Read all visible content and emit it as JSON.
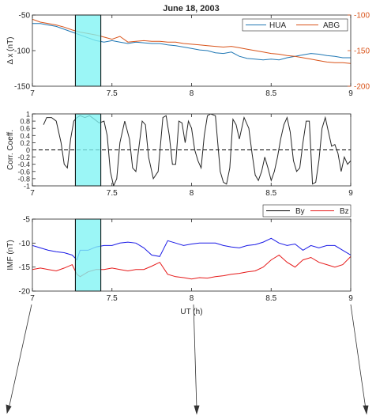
{
  "figure": {
    "title": "June 18, 2003"
  },
  "colors": {
    "hua": "#1f77b4",
    "abg": "#d95319",
    "corr": "#262626",
    "by": "#1a1ae6",
    "bz": "#e61a1a",
    "highlight": "#7ff4f4",
    "axis": "#262626"
  },
  "chart_data": [
    {
      "type": "line",
      "panel": "top",
      "title": "June 18, 2003",
      "xlabel": "",
      "ylabel": "Δ x (nT)",
      "y2label": "",
      "xlim": [
        7,
        9
      ],
      "ylim": [
        -150,
        -50
      ],
      "y2lim": [
        -200,
        -100
      ],
      "xticks": [
        7,
        7.5,
        8,
        8.5,
        9
      ],
      "xtick_labels": [
        "7",
        "7.5",
        "8",
        "8.5",
        "9"
      ],
      "yticks": [
        -150,
        -100,
        -50
      ],
      "ytick_labels": [
        "-150",
        "-100",
        "-50"
      ],
      "y2ticks": [
        -200,
        -150,
        -100
      ],
      "y2tick_labels": [
        "-200",
        "-150",
        "-100"
      ],
      "legend_position": "top-right",
      "highlight": {
        "x0": 7.27,
        "x1": 7.43
      },
      "series": [
        {
          "name": "HUA",
          "axis": "left",
          "x": [
            7.0,
            7.05,
            7.1,
            7.15,
            7.2,
            7.25,
            7.3,
            7.35,
            7.4,
            7.45,
            7.5,
            7.55,
            7.6,
            7.65,
            7.7,
            7.75,
            7.8,
            7.85,
            7.9,
            7.95,
            8.0,
            8.05,
            8.1,
            8.15,
            8.2,
            8.25,
            8.3,
            8.35,
            8.4,
            8.45,
            8.5,
            8.55,
            8.6,
            8.65,
            8.7,
            8.75,
            8.8,
            8.85,
            8.9,
            8.95,
            9.0
          ],
          "y": [
            -62,
            -62,
            -64,
            -66,
            -70,
            -74,
            -78,
            -82,
            -86,
            -88,
            -86,
            -88,
            -90,
            -88,
            -89,
            -90,
            -90,
            -92,
            -93,
            -95,
            -97,
            -99,
            -100,
            -103,
            -104,
            -102,
            -108,
            -111,
            -112,
            -113,
            -112,
            -113,
            -110,
            -108,
            -106,
            -104,
            -105,
            -107,
            -108,
            -110,
            -110
          ]
        },
        {
          "name": "ABG",
          "axis": "right",
          "x": [
            7.0,
            7.05,
            7.1,
            7.15,
            7.2,
            7.25,
            7.3,
            7.35,
            7.4,
            7.45,
            7.5,
            7.55,
            7.6,
            7.65,
            7.7,
            7.75,
            7.8,
            7.85,
            7.9,
            7.95,
            8.0,
            8.05,
            8.1,
            8.15,
            8.2,
            8.25,
            8.3,
            8.35,
            8.4,
            8.45,
            8.5,
            8.55,
            8.6,
            8.65,
            8.7,
            8.75,
            8.8,
            8.85,
            8.9,
            8.95,
            9.0
          ],
          "y": [
            -106,
            -110,
            -112,
            -114,
            -117,
            -121,
            -124,
            -126,
            -128,
            -131,
            -134,
            -130,
            -138,
            -137,
            -136,
            -137,
            -137,
            -138,
            -138,
            -140,
            -141,
            -142,
            -143,
            -144,
            -145,
            -144,
            -146,
            -148,
            -150,
            -152,
            -154,
            -155,
            -157,
            -158,
            -160,
            -162,
            -164,
            -166,
            -167,
            -167,
            -168
          ]
        }
      ]
    },
    {
      "type": "line",
      "panel": "middle",
      "xlabel": "",
      "ylabel": "Corr. Coeff.",
      "xlim": [
        7,
        9
      ],
      "ylim": [
        -1,
        1
      ],
      "xticks": [
        7,
        7.5,
        8,
        8.5,
        9
      ],
      "xtick_labels": [
        "7",
        "7.5",
        "8",
        "8.5",
        "9"
      ],
      "yticks": [
        -1,
        -0.8,
        -0.6,
        -0.4,
        -0.2,
        0,
        0.2,
        0.4,
        0.6,
        0.8,
        1
      ],
      "ytick_labels": [
        "-1",
        "-0.8",
        "-0.6",
        "-0.4",
        "-0.2",
        "0",
        "0.2",
        "0.4",
        "0.6",
        "0.8",
        "1"
      ],
      "zero_line": "dashed",
      "highlight": {
        "x0": 7.27,
        "x1": 7.43
      },
      "series": [
        {
          "name": "",
          "x": [
            7.07,
            7.09,
            7.12,
            7.15,
            7.18,
            7.2,
            7.22,
            7.24,
            7.26,
            7.28,
            7.3,
            7.33,
            7.36,
            7.39,
            7.42,
            7.45,
            7.47,
            7.49,
            7.51,
            7.53,
            7.55,
            7.58,
            7.61,
            7.63,
            7.65,
            7.67,
            7.69,
            7.71,
            7.73,
            7.76,
            7.79,
            7.82,
            7.84,
            7.86,
            7.88,
            7.9,
            7.92,
            7.94,
            7.96,
            7.98,
            8.0,
            8.02,
            8.04,
            8.06,
            8.08,
            8.1,
            8.12,
            8.15,
            8.18,
            8.2,
            8.22,
            8.24,
            8.26,
            8.28,
            8.3,
            8.33,
            8.36,
            8.38,
            8.4,
            8.42,
            8.44,
            8.46,
            8.48,
            8.5,
            8.52,
            8.54,
            8.56,
            8.58,
            8.6,
            8.62,
            8.64,
            8.66,
            8.68,
            8.7,
            8.72,
            8.74,
            8.76,
            8.78,
            8.8,
            8.82,
            8.84,
            8.86,
            8.88,
            8.9,
            8.92,
            8.94,
            8.96,
            8.98,
            9.0
          ],
          "y": [
            0.7,
            0.9,
            0.9,
            0.8,
            0.2,
            -0.4,
            -0.5,
            0.3,
            0.8,
            0.9,
            0.95,
            0.9,
            0.95,
            0.85,
            0.75,
            0.8,
            0.4,
            -0.6,
            -1.0,
            -0.8,
            0.2,
            0.8,
            0.3,
            -0.5,
            -0.6,
            0.1,
            0.8,
            0.7,
            -0.2,
            -0.8,
            -0.6,
            0.9,
            0.95,
            0.4,
            -0.4,
            -0.4,
            0.8,
            0.75,
            0.2,
            0.8,
            0.6,
            0.0,
            -0.3,
            -0.5,
            0.4,
            0.95,
            1.0,
            0.95,
            -0.6,
            -0.9,
            -0.95,
            -0.5,
            0.85,
            0.7,
            0.3,
            0.9,
            0.6,
            -0.1,
            -0.7,
            -0.85,
            -0.6,
            -0.2,
            -0.5,
            -0.85,
            -0.6,
            -0.2,
            0.3,
            0.7,
            0.9,
            0.5,
            -0.3,
            -0.6,
            -0.5,
            0.2,
            0.8,
            0.8,
            -0.95,
            -0.9,
            -0.3,
            0.6,
            0.9,
            0.5,
            0.1,
            0.15,
            -0.1,
            -0.6,
            -0.2,
            -0.4,
            -0.3
          ]
        }
      ]
    },
    {
      "type": "line",
      "panel": "bottom",
      "xlabel": "UT (h)",
      "ylabel": "IMF (nT)",
      "xlim": [
        7,
        9
      ],
      "ylim": [
        -20,
        -5
      ],
      "xticks": [
        7,
        7.5,
        8,
        8.5,
        9
      ],
      "xtick_labels": [
        "7",
        "7.5",
        "8",
        "8.5",
        "9"
      ],
      "yticks": [
        -20,
        -15,
        -10,
        -5
      ],
      "ytick_labels": [
        "-20",
        "-15",
        "-10",
        "-5"
      ],
      "legend_position": "above-right",
      "highlight": {
        "x0": 7.27,
        "x1": 7.43
      },
      "series": [
        {
          "name": "By",
          "x": [
            7.0,
            7.05,
            7.1,
            7.15,
            7.2,
            7.25,
            7.28,
            7.3,
            7.35,
            7.4,
            7.45,
            7.5,
            7.55,
            7.6,
            7.65,
            7.7,
            7.75,
            7.8,
            7.85,
            7.9,
            7.95,
            8.0,
            8.05,
            8.1,
            8.15,
            8.2,
            8.25,
            8.3,
            8.35,
            8.4,
            8.45,
            8.5,
            8.55,
            8.6,
            8.65,
            8.7,
            8.75,
            8.8,
            8.85,
            8.9,
            8.95,
            9.0
          ],
          "y": [
            -10.5,
            -11,
            -11.5,
            -11.8,
            -12,
            -12.5,
            -13.5,
            -11.5,
            -11.5,
            -10.8,
            -10.5,
            -10.5,
            -10,
            -9.8,
            -10,
            -11,
            -12.5,
            -12.8,
            -9.5,
            -10,
            -10.5,
            -10.2,
            -10,
            -10,
            -10,
            -10.5,
            -10.8,
            -11,
            -10.5,
            -10.3,
            -9.8,
            -9,
            -10,
            -10.5,
            -10.2,
            -11.5,
            -10.5,
            -11,
            -10.5,
            -10.5,
            -11.5,
            -12.5
          ]
        },
        {
          "name": "Bz",
          "x": [
            7.0,
            7.05,
            7.1,
            7.15,
            7.2,
            7.25,
            7.28,
            7.3,
            7.35,
            7.4,
            7.45,
            7.5,
            7.55,
            7.6,
            7.65,
            7.7,
            7.75,
            7.8,
            7.85,
            7.9,
            7.95,
            8.0,
            8.05,
            8.1,
            8.15,
            8.2,
            8.25,
            8.3,
            8.35,
            8.4,
            8.45,
            8.5,
            8.55,
            8.6,
            8.65,
            8.7,
            8.75,
            8.8,
            8.85,
            8.9,
            8.95,
            9.0
          ],
          "y": [
            -15.5,
            -15.2,
            -15.5,
            -15.8,
            -15.2,
            -14.5,
            -16.5,
            -17,
            -16,
            -15.5,
            -15.5,
            -15.2,
            -15.5,
            -15.8,
            -15.5,
            -15.5,
            -14.8,
            -14,
            -16.5,
            -17,
            -17.2,
            -17.5,
            -17.2,
            -17.3,
            -17,
            -16.8,
            -16.5,
            -16.3,
            -16,
            -15.8,
            -15,
            -13.5,
            -12.5,
            -14,
            -15,
            -13.5,
            -13,
            -14,
            -14.5,
            -15,
            -14.5,
            -12.8
          ]
        }
      ]
    }
  ]
}
